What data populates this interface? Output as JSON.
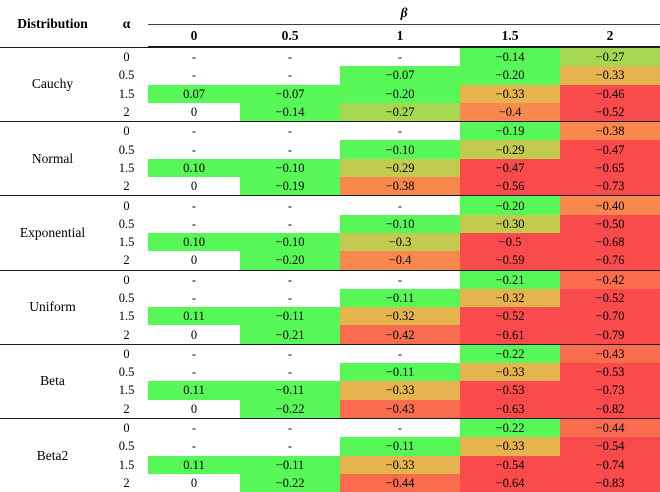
{
  "table": {
    "col1_header": "Distribution",
    "col2_header": "α",
    "span_header": "β",
    "beta_values": [
      "0",
      "0.5",
      "1",
      "1.5",
      "2"
    ],
    "missing_marker": "-",
    "palette": {
      "blank": "#ffffff",
      "green": "#57f757",
      "yellowgreen": "#a6d751",
      "olive": "#c2ca50",
      "mustard": "#e5b44e",
      "orange": "#f9884f",
      "orangered": "#f96c4e",
      "red": "#f94a4c"
    },
    "groups": [
      {
        "name": "Cauchy",
        "rows": [
          {
            "alpha": "0",
            "cells": [
              [
                "-",
                "blank"
              ],
              [
                "-",
                "blank"
              ],
              [
                "-",
                "blank"
              ],
              [
                "−0.14",
                "green"
              ],
              [
                "−0.27",
                "yellowgreen"
              ]
            ]
          },
          {
            "alpha": "0.5",
            "cells": [
              [
                "-",
                "blank"
              ],
              [
                "-",
                "blank"
              ],
              [
                "−0.07",
                "green"
              ],
              [
                "−0.20",
                "green"
              ],
              [
                "−0.33",
                "mustard"
              ]
            ]
          },
          {
            "alpha": "1.5",
            "cells": [
              [
                "0.07",
                "green"
              ],
              [
                "−0.07",
                "green"
              ],
              [
                "−0.20",
                "green"
              ],
              [
                "−0.33",
                "mustard"
              ],
              [
                "−0.46",
                "red"
              ]
            ]
          },
          {
            "alpha": "2",
            "cells": [
              [
                "0",
                "blank"
              ],
              [
                "−0.14",
                "green"
              ],
              [
                "−0.27",
                "yellowgreen"
              ],
              [
                "−0.4",
                "orange"
              ],
              [
                "−0.52",
                "red"
              ]
            ]
          }
        ]
      },
      {
        "name": "Normal",
        "rows": [
          {
            "alpha": "0",
            "cells": [
              [
                "-",
                "blank"
              ],
              [
                "-",
                "blank"
              ],
              [
                "-",
                "blank"
              ],
              [
                "−0.19",
                "green"
              ],
              [
                "−0.38",
                "orange"
              ]
            ]
          },
          {
            "alpha": "0.5",
            "cells": [
              [
                "-",
                "blank"
              ],
              [
                "-",
                "blank"
              ],
              [
                "−0.10",
                "green"
              ],
              [
                "−0.29",
                "olive"
              ],
              [
                "−0.47",
                "red"
              ]
            ]
          },
          {
            "alpha": "1.5",
            "cells": [
              [
                "0.10",
                "green"
              ],
              [
                "−0.10",
                "green"
              ],
              [
                "−0.29",
                "olive"
              ],
              [
                "−0.47",
                "red"
              ],
              [
                "−0.65",
                "red"
              ]
            ]
          },
          {
            "alpha": "2",
            "cells": [
              [
                "0",
                "blank"
              ],
              [
                "−0.19",
                "green"
              ],
              [
                "−0.38",
                "orange"
              ],
              [
                "−0.56",
                "red"
              ],
              [
                "−0.73",
                "red"
              ]
            ]
          }
        ]
      },
      {
        "name": "Exponential",
        "rows": [
          {
            "alpha": "0",
            "cells": [
              [
                "-",
                "blank"
              ],
              [
                "-",
                "blank"
              ],
              [
                "-",
                "blank"
              ],
              [
                "−0.20",
                "green"
              ],
              [
                "−0.40",
                "orange"
              ]
            ]
          },
          {
            "alpha": "0.5",
            "cells": [
              [
                "-",
                "blank"
              ],
              [
                "-",
                "blank"
              ],
              [
                "−0.10",
                "green"
              ],
              [
                "−0.30",
                "olive"
              ],
              [
                "−0.50",
                "red"
              ]
            ]
          },
          {
            "alpha": "1.5",
            "cells": [
              [
                "0.10",
                "green"
              ],
              [
                "−0.10",
                "green"
              ],
              [
                "−0.3",
                "olive"
              ],
              [
                "−0.5",
                "red"
              ],
              [
                "−0.68",
                "red"
              ]
            ]
          },
          {
            "alpha": "2",
            "cells": [
              [
                "0",
                "blank"
              ],
              [
                "−0.20",
                "green"
              ],
              [
                "−0.4",
                "orange"
              ],
              [
                "−0.59",
                "red"
              ],
              [
                "−0.76",
                "red"
              ]
            ]
          }
        ]
      },
      {
        "name": "Uniform",
        "rows": [
          {
            "alpha": "0",
            "cells": [
              [
                "-",
                "blank"
              ],
              [
                "-",
                "blank"
              ],
              [
                "-",
                "blank"
              ],
              [
                "−0.21",
                "green"
              ],
              [
                "−0.42",
                "orangered"
              ]
            ]
          },
          {
            "alpha": "0.5",
            "cells": [
              [
                "-",
                "blank"
              ],
              [
                "-",
                "blank"
              ],
              [
                "−0.11",
                "green"
              ],
              [
                "−0.32",
                "mustard"
              ],
              [
                "−0.52",
                "red"
              ]
            ]
          },
          {
            "alpha": "1.5",
            "cells": [
              [
                "0.11",
                "green"
              ],
              [
                "−0.11",
                "green"
              ],
              [
                "−0.32",
                "mustard"
              ],
              [
                "−0.52",
                "red"
              ],
              [
                "−0.70",
                "red"
              ]
            ]
          },
          {
            "alpha": "2",
            "cells": [
              [
                "0",
                "blank"
              ],
              [
                "−0.21",
                "green"
              ],
              [
                "−0.42",
                "orangered"
              ],
              [
                "−0.61",
                "red"
              ],
              [
                "−0.79",
                "red"
              ]
            ]
          }
        ]
      },
      {
        "name": "Beta",
        "rows": [
          {
            "alpha": "0",
            "cells": [
              [
                "-",
                "blank"
              ],
              [
                "-",
                "blank"
              ],
              [
                "-",
                "blank"
              ],
              [
                "−0.22",
                "green"
              ],
              [
                "−0.43",
                "orangered"
              ]
            ]
          },
          {
            "alpha": "0.5",
            "cells": [
              [
                "-",
                "blank"
              ],
              [
                "-",
                "blank"
              ],
              [
                "−0.11",
                "green"
              ],
              [
                "−0.33",
                "mustard"
              ],
              [
                "−0.53",
                "red"
              ]
            ]
          },
          {
            "alpha": "1.5",
            "cells": [
              [
                "0.11",
                "green"
              ],
              [
                "−0.11",
                "green"
              ],
              [
                "−0.33",
                "mustard"
              ],
              [
                "−0.53",
                "red"
              ],
              [
                "−0.73",
                "red"
              ]
            ]
          },
          {
            "alpha": "2",
            "cells": [
              [
                "0",
                "blank"
              ],
              [
                "−0.22",
                "green"
              ],
              [
                "−0.43",
                "orangered"
              ],
              [
                "−0.63",
                "red"
              ],
              [
                "−0.82",
                "red"
              ]
            ]
          }
        ]
      },
      {
        "name": "Beta2",
        "rows": [
          {
            "alpha": "0",
            "cells": [
              [
                "-",
                "blank"
              ],
              [
                "-",
                "blank"
              ],
              [
                "-",
                "blank"
              ],
              [
                "−0.22",
                "green"
              ],
              [
                "−0.44",
                "orangered"
              ]
            ]
          },
          {
            "alpha": "0.5",
            "cells": [
              [
                "-",
                "blank"
              ],
              [
                "-",
                "blank"
              ],
              [
                "−0.11",
                "green"
              ],
              [
                "−0.33",
                "mustard"
              ],
              [
                "−0.54",
                "red"
              ]
            ]
          },
          {
            "alpha": "1.5",
            "cells": [
              [
                "0.11",
                "green"
              ],
              [
                "−0.11",
                "green"
              ],
              [
                "−0.33",
                "mustard"
              ],
              [
                "−0.54",
                "red"
              ],
              [
                "−0.74",
                "red"
              ]
            ]
          },
          {
            "alpha": "2",
            "cells": [
              [
                "0",
                "blank"
              ],
              [
                "−0.22",
                "green"
              ],
              [
                "−0.44",
                "orangered"
              ],
              [
                "−0.64",
                "red"
              ],
              [
                "−0.83",
                "red"
              ]
            ]
          }
        ]
      }
    ]
  }
}
